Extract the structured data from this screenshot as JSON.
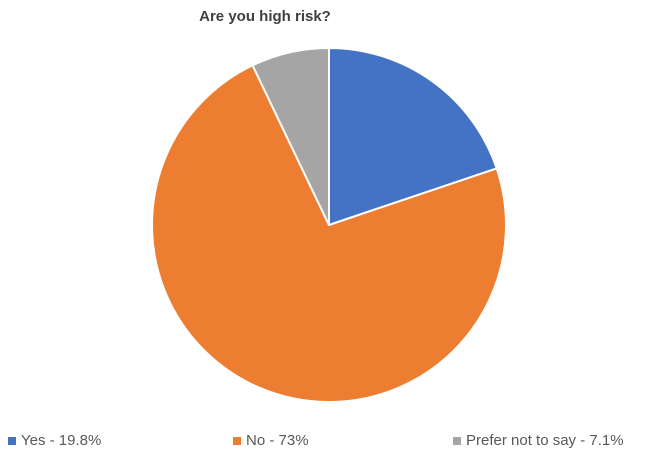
{
  "chart_data": {
    "type": "pie",
    "title": "Are you high risk?",
    "categories": [
      "Yes - 19.8%",
      "No - 73%",
      "Prefer not to say - 7.1%"
    ],
    "values": [
      19.8,
      73,
      7.1
    ],
    "colors": [
      "#4472c4",
      "#ed7d31",
      "#a5a5a5"
    ],
    "legend_position": "bottom",
    "start_angle_deg": 0,
    "direction": "clockwise"
  }
}
